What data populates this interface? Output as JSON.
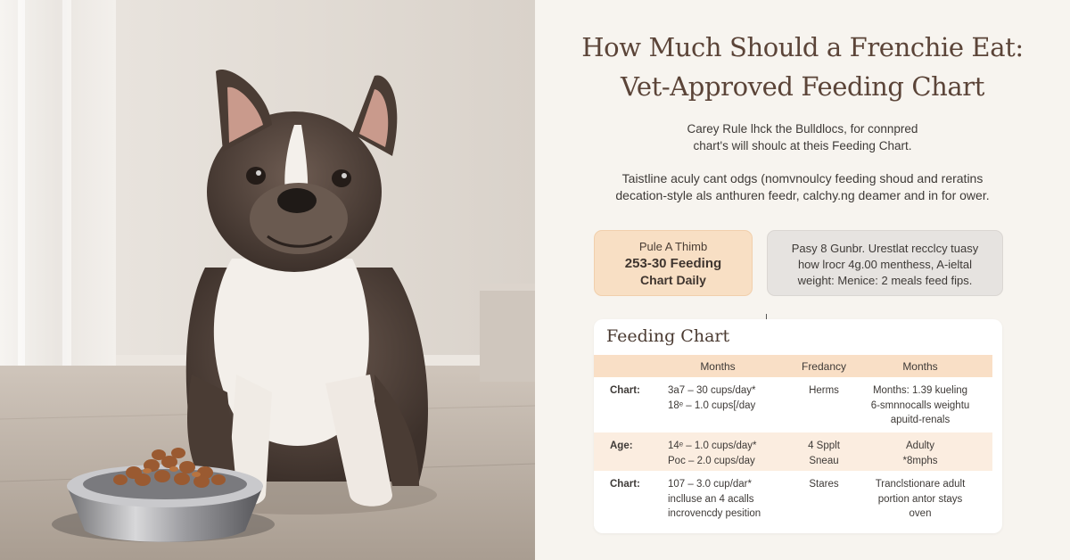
{
  "header": {
    "title_line1": "How Much Should a Frenchie Eat:",
    "title_line2": "Vet-Approved Feeding Chart"
  },
  "intro": {
    "line1": "Carey Rule lhck the Bulldlocs, for connpred",
    "line2": "chart's will shoulc at theis Feeding Chart.",
    "line3": "Taistline aculy cant odgs (nomvnoulcy feeding shoud and reratins",
    "line4": "decation-style als anthuren feedr, calchy.ng deamer and in for ower."
  },
  "card_peach": {
    "small": "Pule A Thimb",
    "big1": "253-30 Feeding",
    "big2": "Chart Daily"
  },
  "card_grey": {
    "line1": "Pasy 8 Gunbr. Urestlat recclcy tuasy",
    "line2": "how lrocr 4g.00 menthess, A-ieltal",
    "line3": "weight: Menice: 2 meals feed fips."
  },
  "chart": {
    "title": "Feeding Chart",
    "headers": [
      "Months",
      "Fredancy",
      "Months"
    ],
    "rows": [
      {
        "label": "Chart:",
        "a": [
          "3a7 – 30 cups/day*",
          "18ᵉ – 1.0 cups[/day"
        ],
        "b": [
          "Herms"
        ],
        "c": [
          "Months: 1.39 kueling",
          "6-smnnocalls weightu",
          "apuitd-renals"
        ]
      },
      {
        "label": "Age:",
        "a": [
          "14ᵉ – 1.0 cups/day*",
          "Poc – 2.0 cups/day"
        ],
        "b": [
          "4 Spplt",
          "Sneau"
        ],
        "c": [
          "Adulty",
          "*8mphs"
        ]
      },
      {
        "label": "Chart:",
        "a": [
          "107 – 3.0 cup/dar*",
          "inclluse an 4 acalls",
          "incrovencdy pesition"
        ],
        "b": [
          "Stares"
        ],
        "c": [
          "Tranclstionare adult",
          "portion antor stays",
          "oven"
        ]
      }
    ]
  },
  "colors": {
    "title": "#5b4438",
    "peach": "#f8dfc4",
    "grey_card": "#e6e3e0",
    "table_head": "#f9dfc6",
    "row_alt": "#fbede0"
  },
  "photo": {
    "subject": "french-bulldog-with-food-bowl"
  }
}
